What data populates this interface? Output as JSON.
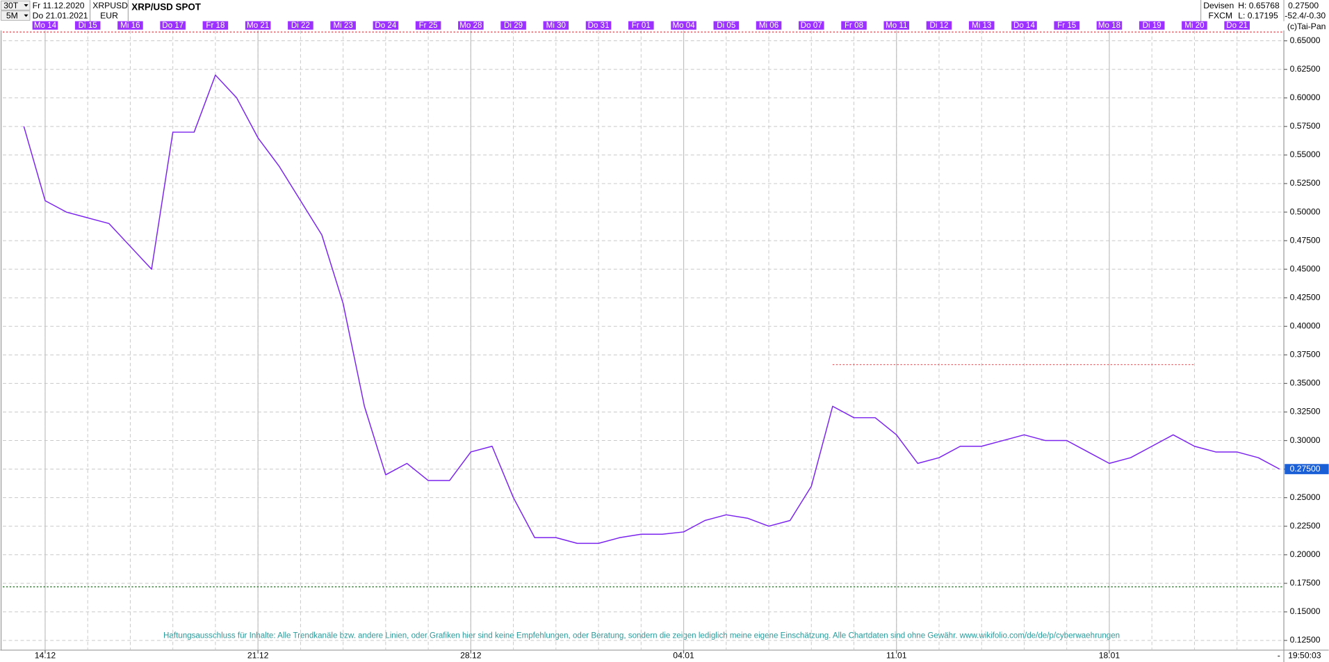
{
  "header": {
    "interval": "30T",
    "zoom": "5M",
    "from_date": "Fr 11.12.2020",
    "to_date": "Do 21.01.2021",
    "symbol": "XRPUSD",
    "currency": "EUR",
    "market": "Devisen",
    "source": "FXCM",
    "change": "-52.4/-0.30",
    "copyright": "(c)Tai-Pan",
    "time": "19:50:03",
    "scroll": "-"
  },
  "chart_data": {
    "type": "line",
    "title": "XRP/USD SPOT",
    "categories": [
      null,
      "Mo 14",
      null,
      "Di 15",
      null,
      "Mi 16",
      null,
      "Do 17",
      null,
      "Fr 18",
      null,
      "Mo 21",
      null,
      "Di 22",
      null,
      "Mi 23",
      null,
      "Do 24",
      null,
      "Fr 25",
      null,
      "Mo 28",
      null,
      "Di 29",
      null,
      "Mi 30",
      null,
      "Do 31",
      null,
      "Fr 01",
      null,
      "Mo 04",
      null,
      "Di 05",
      null,
      "Mi 06",
      null,
      "Do 07",
      null,
      "Fr 08",
      null,
      "Mo 11",
      null,
      "Di 12",
      null,
      "Mi 13",
      null,
      "Do 14",
      null,
      "Fr 15",
      null,
      "Mo 18",
      null,
      "Di 19",
      null,
      "Mi 20",
      null,
      "Do 21",
      null,
      null
    ],
    "series": [
      {
        "name": "XRPUSD",
        "color": "#7a22ee",
        "values": [
          0.575,
          0.51,
          0.5,
          0.495,
          0.49,
          0.47,
          0.45,
          0.57,
          0.57,
          0.62,
          0.6,
          0.565,
          0.54,
          0.51,
          0.48,
          0.42,
          0.33,
          0.27,
          0.28,
          0.265,
          0.265,
          0.29,
          0.295,
          0.25,
          0.215,
          0.215,
          0.21,
          0.21,
          0.215,
          0.218,
          0.218,
          0.22,
          0.23,
          0.235,
          0.232,
          0.225,
          0.23,
          0.26,
          0.33,
          0.32,
          0.32,
          0.305,
          0.28,
          0.285,
          0.295,
          0.295,
          0.3,
          0.305,
          0.3,
          0.3,
          0.29,
          0.28,
          0.285,
          0.295,
          0.305,
          0.295,
          0.29,
          0.29,
          0.285,
          0.275
        ]
      }
    ],
    "date_labels": [
      "14.12",
      "21.12",
      "28.12",
      "04.01",
      "11.01",
      "18.01"
    ],
    "ylim": [
      0.1165,
      0.659
    ],
    "yticks": [
      {
        "value": 0.125,
        "label": "0.12500"
      },
      {
        "value": 0.15,
        "label": "0.15000"
      },
      {
        "value": 0.175,
        "label": "0.17500"
      },
      {
        "value": 0.2,
        "label": "0.20000"
      },
      {
        "value": 0.225,
        "label": "0.22500"
      },
      {
        "value": 0.25,
        "label": "0.25000"
      },
      {
        "value": 0.275,
        "label": "0.27500"
      },
      {
        "value": 0.3,
        "label": "0.30000"
      },
      {
        "value": 0.325,
        "label": "0.32500"
      },
      {
        "value": 0.35,
        "label": "0.35000"
      },
      {
        "value": 0.375,
        "label": "0.37500"
      },
      {
        "value": 0.4,
        "label": "0.40000"
      },
      {
        "value": 0.425,
        "label": "0.42500"
      },
      {
        "value": 0.45,
        "label": "0.45000"
      },
      {
        "value": 0.475,
        "label": "0.47500"
      },
      {
        "value": 0.5,
        "label": "0.50000"
      },
      {
        "value": 0.525,
        "label": "0.52500"
      },
      {
        "value": 0.55,
        "label": "0.55000"
      },
      {
        "value": 0.575,
        "label": "0.57500"
      },
      {
        "value": 0.6,
        "label": "0.60000"
      },
      {
        "value": 0.625,
        "label": "0.62500"
      },
      {
        "value": 0.65,
        "label": "0.65000"
      }
    ],
    "grid": true,
    "high": {
      "value": 0.65768,
      "label": "H: 0.65768"
    },
    "low": {
      "value": 0.17195,
      "label": "L: 0.17195"
    },
    "last": {
      "value": 0.275,
      "label": "0.27500"
    },
    "resistance": 0.3665,
    "annotation": "Haftungsausschluss für Inhalte: Alle Trendkanäle bzw. andere Linien, oder Grafiken hier sind keine Empfehlungen, oder Beratung, sondern die zeigen lediglich meine eigene Einschätzung. Alle Chartdaten sind ohne Gewähr.  www.wikifolio.com/de/de/p/cyberwaehrungen"
  }
}
